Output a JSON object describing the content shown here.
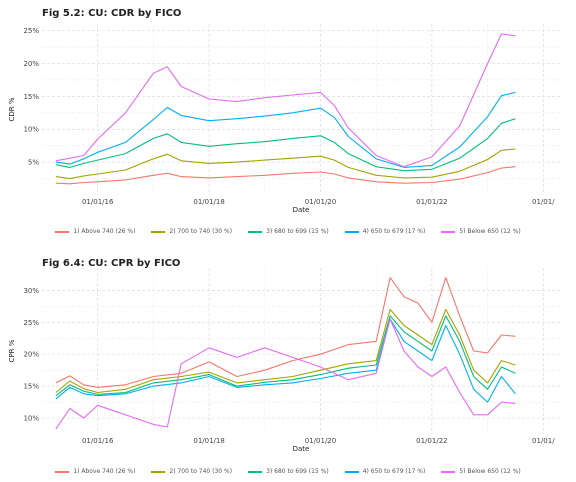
{
  "chart_data": [
    {
      "type": "line",
      "title": "Fig 5.2: CU: CDR by FICO",
      "xlabel": "Date",
      "ylabel": "CDR %",
      "x_ticks": [
        "01/01/16",
        "01/01/18",
        "01/01/20",
        "01/01/22",
        "01/01/"
      ],
      "y_ticks": [
        "5%",
        "10%",
        "15%",
        "20%",
        "25%"
      ],
      "x_range_year": [
        2015.0,
        2024.3
      ],
      "ylim": [
        0,
        26
      ],
      "grid": true,
      "legend_position": "bottom",
      "series": [
        {
          "name": "1) Above 740 (26 %)",
          "color": "#f8766d",
          "x": [
            2015.25,
            2015.5,
            2015.75,
            2016.0,
            2016.5,
            2017.0,
            2017.25,
            2017.5,
            2018.0,
            2018.5,
            2019.0,
            2019.5,
            2020.0,
            2020.25,
            2020.5,
            2021.0,
            2021.5,
            2022.0,
            2022.5,
            2023.0,
            2023.25,
            2023.5
          ],
          "values": [
            1.8,
            1.7,
            1.9,
            2.0,
            2.3,
            3.0,
            3.3,
            2.8,
            2.6,
            2.8,
            3.0,
            3.3,
            3.5,
            3.2,
            2.6,
            2.0,
            1.8,
            1.9,
            2.4,
            3.4,
            4.1,
            4.3
          ]
        },
        {
          "name": "2) 700 to 740 (30 %)",
          "color": "#a3a500",
          "x": [
            2015.25,
            2015.5,
            2015.75,
            2016.0,
            2016.5,
            2017.0,
            2017.25,
            2017.5,
            2018.0,
            2018.5,
            2019.0,
            2019.5,
            2020.0,
            2020.25,
            2020.5,
            2021.0,
            2021.5,
            2022.0,
            2022.5,
            2023.0,
            2023.25,
            2023.5
          ],
          "values": [
            2.8,
            2.5,
            2.9,
            3.2,
            3.8,
            5.5,
            6.2,
            5.2,
            4.8,
            5.0,
            5.3,
            5.6,
            5.9,
            5.3,
            4.2,
            3.0,
            2.6,
            2.7,
            3.6,
            5.4,
            6.8,
            7.0
          ]
        },
        {
          "name": "3) 680 to 699 (15 %)",
          "color": "#00bf7d",
          "x": [
            2015.25,
            2015.5,
            2015.75,
            2016.0,
            2016.5,
            2017.0,
            2017.25,
            2017.5,
            2018.0,
            2018.5,
            2019.0,
            2019.5,
            2020.0,
            2020.25,
            2020.5,
            2021.0,
            2021.5,
            2022.0,
            2022.5,
            2023.0,
            2023.25,
            2023.5
          ],
          "values": [
            4.6,
            4.2,
            4.8,
            5.3,
            6.3,
            8.6,
            9.3,
            8.0,
            7.4,
            7.8,
            8.1,
            8.6,
            9.0,
            8.0,
            6.3,
            4.3,
            3.7,
            3.9,
            5.6,
            8.6,
            10.9,
            11.6
          ]
        },
        {
          "name": "4) 650 to 679 (17 %)",
          "color": "#00b0f6",
          "x": [
            2015.25,
            2015.5,
            2015.75,
            2016.0,
            2016.5,
            2017.0,
            2017.25,
            2017.5,
            2018.0,
            2018.5,
            2019.0,
            2019.5,
            2020.0,
            2020.25,
            2020.5,
            2021.0,
            2021.5,
            2022.0,
            2022.5,
            2023.0,
            2023.25,
            2023.5
          ],
          "values": [
            5.0,
            4.7,
            5.5,
            6.5,
            8.0,
            11.5,
            13.3,
            12.1,
            11.3,
            11.6,
            12.0,
            12.5,
            13.2,
            11.8,
            8.9,
            5.5,
            4.2,
            4.5,
            7.3,
            11.9,
            15.1,
            15.6
          ]
        },
        {
          "name": "5) Below 650 (12 %)",
          "color": "#e76bf3",
          "x": [
            2015.25,
            2015.5,
            2015.75,
            2016.0,
            2016.5,
            2017.0,
            2017.25,
            2017.5,
            2018.0,
            2018.5,
            2019.0,
            2019.5,
            2020.0,
            2020.25,
            2020.5,
            2021.0,
            2021.5,
            2022.0,
            2022.5,
            2023.0,
            2023.25,
            2023.5
          ],
          "values": [
            5.2,
            5.6,
            6.0,
            8.5,
            12.5,
            18.5,
            19.5,
            16.5,
            14.6,
            14.2,
            14.8,
            15.2,
            15.6,
            13.6,
            10.2,
            6.0,
            4.3,
            5.8,
            10.5,
            20.0,
            24.5,
            24.2
          ]
        }
      ]
    },
    {
      "type": "line",
      "title": "Fig 6.4: CU: CPR by FICO",
      "xlabel": "Date",
      "ylabel": "CPR %",
      "x_ticks": [
        "01/01/16",
        "01/01/18",
        "01/01/20",
        "01/01/22",
        "01/01/"
      ],
      "y_ticks": [
        "10%",
        "15%",
        "20%",
        "25%",
        "30%"
      ],
      "x_range_year": [
        2015.0,
        2024.3
      ],
      "ylim": [
        7.5,
        33.5
      ],
      "grid": true,
      "legend_position": "bottom",
      "series": [
        {
          "name": "1) Above 740 (26 %)",
          "color": "#f8766d",
          "x": [
            2015.25,
            2015.5,
            2015.75,
            2016.0,
            2016.5,
            2017.0,
            2017.5,
            2018.0,
            2018.5,
            2019.0,
            2019.5,
            2020.0,
            2020.5,
            2021.0,
            2021.25,
            2021.5,
            2021.75,
            2022.0,
            2022.25,
            2022.5,
            2022.75,
            2023.0,
            2023.25,
            2023.5
          ],
          "values": [
            15.5,
            16.6,
            15.2,
            14.8,
            15.2,
            16.5,
            17.0,
            18.8,
            16.5,
            17.5,
            19.0,
            20.0,
            21.5,
            22.0,
            32.0,
            29.0,
            28.0,
            25.0,
            32.0,
            26.0,
            20.5,
            20.2,
            23.0,
            22.8
          ]
        },
        {
          "name": "2) 700 to 740 (30 %)",
          "color": "#a3a500",
          "x": [
            2015.25,
            2015.5,
            2015.75,
            2016.0,
            2016.5,
            2017.0,
            2017.5,
            2018.0,
            2018.5,
            2019.0,
            2019.5,
            2020.0,
            2020.5,
            2021.0,
            2021.25,
            2021.5,
            2021.75,
            2022.0,
            2022.25,
            2022.5,
            2022.75,
            2023.0,
            2023.25,
            2023.5
          ],
          "values": [
            14.0,
            15.8,
            14.6,
            14.0,
            14.5,
            16.0,
            16.5,
            17.2,
            15.5,
            16.0,
            16.5,
            17.5,
            18.5,
            19.0,
            27.0,
            24.5,
            23.0,
            21.5,
            27.0,
            23.0,
            17.5,
            15.5,
            19.0,
            18.3
          ]
        },
        {
          "name": "3) 680 to 699 (15 %)",
          "color": "#00bf7d",
          "x": [
            2015.25,
            2015.5,
            2015.75,
            2016.0,
            2016.5,
            2017.0,
            2017.5,
            2018.0,
            2018.5,
            2019.0,
            2019.5,
            2020.0,
            2020.5,
            2021.0,
            2021.25,
            2021.5,
            2021.75,
            2022.0,
            2022.25,
            2022.5,
            2022.75,
            2023.0,
            2023.25,
            2023.5
          ],
          "values": [
            13.5,
            15.2,
            14.2,
            13.7,
            14.0,
            15.5,
            16.0,
            16.8,
            15.0,
            15.6,
            16.0,
            16.8,
            17.8,
            18.3,
            26.0,
            23.5,
            22.0,
            20.5,
            26.0,
            22.0,
            16.5,
            14.5,
            18.0,
            17.0
          ]
        },
        {
          "name": "4) 650 to 679 (17 %)",
          "color": "#00b0f6",
          "x": [
            2015.25,
            2015.5,
            2015.75,
            2016.0,
            2016.5,
            2017.0,
            2017.5,
            2018.0,
            2018.5,
            2019.0,
            2019.5,
            2020.0,
            2020.5,
            2021.0,
            2021.25,
            2021.5,
            2021.75,
            2022.0,
            2022.25,
            2022.5,
            2022.75,
            2023.0,
            2023.25,
            2023.5
          ],
          "values": [
            13.0,
            14.8,
            13.8,
            13.5,
            13.8,
            15.0,
            15.5,
            16.5,
            14.8,
            15.2,
            15.5,
            16.2,
            17.0,
            17.5,
            25.5,
            22.0,
            20.5,
            19.0,
            24.5,
            20.0,
            14.5,
            12.5,
            16.5,
            13.8
          ]
        },
        {
          "name": "5) Below 650 (12 %)",
          "color": "#e76bf3",
          "x": [
            2015.25,
            2015.5,
            2015.75,
            2016.0,
            2016.5,
            2017.0,
            2017.25,
            2017.5,
            2018.0,
            2018.5,
            2019.0,
            2019.5,
            2020.0,
            2020.5,
            2021.0,
            2021.25,
            2021.5,
            2021.75,
            2022.0,
            2022.25,
            2022.5,
            2022.75,
            2023.0,
            2023.25,
            2023.5
          ],
          "values": [
            8.3,
            11.5,
            10.0,
            12.0,
            10.5,
            9.0,
            8.6,
            18.5,
            21.0,
            19.5,
            21.0,
            19.5,
            18.0,
            16.0,
            17.0,
            25.5,
            20.5,
            18.0,
            16.5,
            18.0,
            14.0,
            10.5,
            10.5,
            12.5,
            12.3
          ]
        }
      ]
    }
  ]
}
